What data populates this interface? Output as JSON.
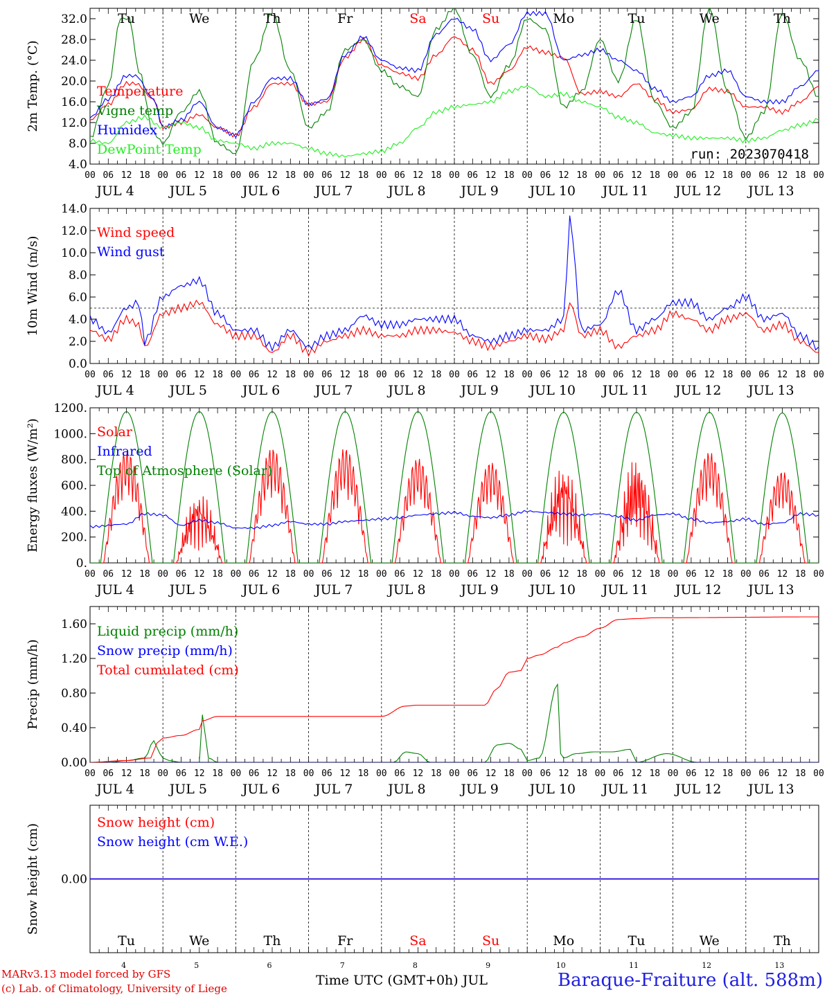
{
  "run": "run: 2023070418",
  "footer": {
    "model": "MARv3.13 model forced by GFS",
    "lab": "(c) Lab. of Climatology, University of Liege",
    "time_label": "Time UTC (GMT+0h) JUL",
    "station": "Baraque-Fraiture (alt. 588m)"
  },
  "days": [
    "Tu",
    "We",
    "Th",
    "Fr",
    "Sa",
    "Su",
    "Mo",
    "Tu",
    "We",
    "Th"
  ],
  "weekend_index": [
    4,
    5
  ],
  "date_labels": [
    "JUL  4",
    "JUL  5",
    "JUL  6",
    "JUL  7",
    "JUL  8",
    "JUL  9",
    "JUL 10",
    "JUL 11",
    "JUL 12",
    "JUL 13"
  ],
  "bottom_day_numbers": [
    "4",
    "5",
    "6",
    "7",
    "8",
    "9",
    "10",
    "11",
    "12",
    "13"
  ],
  "hour_labels": [
    "00",
    "06",
    "12",
    "18"
  ],
  "hour_last": "00",
  "colors": {
    "red": "#ff0000",
    "blue": "#0000ff",
    "green": "#008000",
    "lightgreen": "#22ee22",
    "purple": "#8000a0"
  },
  "chart_data": [
    {
      "type": "line",
      "panel": "temperature",
      "ylabel": "2m Temp. (°C)",
      "ylim": [
        4,
        34
      ],
      "yticks": [
        "4.0",
        "8.0",
        "12.0",
        "16.0",
        "20.0",
        "24.0",
        "28.0",
        "32.0"
      ],
      "ytick_values": [
        4,
        8,
        12,
        16,
        20,
        24,
        28,
        32
      ],
      "x_unit": "hours since JUL 4 00 UTC",
      "series": [
        {
          "name": "Temperature",
          "color": "red",
          "x": [
            0,
            6,
            12,
            15,
            21,
            24,
            30,
            36,
            42,
            48,
            54,
            60,
            66,
            72,
            78,
            84,
            90,
            96,
            102,
            108,
            114,
            120,
            126,
            132,
            138,
            144,
            150,
            156,
            162,
            168,
            174,
            180,
            186,
            192,
            198,
            204,
            210,
            216,
            222,
            228,
            234,
            240
          ],
          "y": [
            12.5,
            15.5,
            19.5,
            19.5,
            16.5,
            11,
            12,
            13.5,
            11,
            9.5,
            15,
            19.5,
            19.5,
            15.5,
            16,
            24.5,
            28,
            23,
            21.5,
            20.5,
            25,
            28.5,
            26,
            19.5,
            22,
            26.5,
            25.5,
            24.5,
            17.5,
            18,
            17,
            19.5,
            16.5,
            14,
            14.5,
            18.5,
            18,
            15,
            15,
            14,
            16,
            19
          ]
        },
        {
          "name": "Vigne temp",
          "color": "green",
          "x": [
            0,
            6,
            10,
            13,
            16,
            21,
            24,
            30,
            36,
            42,
            48,
            54,
            60,
            66,
            72,
            78,
            84,
            90,
            96,
            102,
            108,
            114,
            120,
            126,
            132,
            138,
            144,
            150,
            156,
            162,
            168,
            174,
            180,
            186,
            192,
            198,
            204,
            210,
            216,
            222,
            228,
            234,
            240
          ],
          "y": [
            9,
            19,
            32,
            32,
            22,
            10,
            8,
            14,
            18,
            8,
            6,
            24,
            33,
            22,
            11,
            14,
            26,
            28,
            22,
            19,
            17,
            30,
            34,
            25,
            17,
            23,
            32,
            30,
            15,
            18,
            28,
            20,
            32,
            16,
            11,
            14,
            34,
            18,
            9,
            14,
            33,
            24,
            17
          ]
        },
        {
          "name": "Humidex",
          "color": "blue",
          "x": [
            0,
            6,
            12,
            15,
            21,
            24,
            30,
            36,
            42,
            48,
            54,
            60,
            66,
            72,
            78,
            84,
            90,
            96,
            102,
            108,
            114,
            120,
            126,
            132,
            138,
            144,
            150,
            156,
            162,
            168,
            174,
            180,
            186,
            192,
            198,
            204,
            210,
            216,
            222,
            228,
            234,
            240
          ],
          "y": [
            13,
            16.5,
            21,
            21,
            16.5,
            11,
            12.5,
            16,
            11,
            9.5,
            16,
            20.5,
            20.5,
            15.5,
            16.5,
            25,
            28.5,
            24,
            22.5,
            22,
            29,
            32,
            30,
            24,
            27,
            33,
            33,
            24,
            25,
            26,
            24,
            22,
            18.5,
            16,
            17,
            21,
            22,
            17,
            16,
            16,
            19,
            22
          ]
        },
        {
          "name": "DewPoint Temp",
          "color": "lightgreen",
          "x": [
            0,
            6,
            12,
            18,
            24,
            30,
            36,
            42,
            48,
            54,
            60,
            66,
            72,
            78,
            84,
            90,
            96,
            102,
            108,
            114,
            120,
            126,
            132,
            138,
            144,
            150,
            156,
            162,
            168,
            174,
            180,
            186,
            192,
            198,
            204,
            210,
            216,
            222,
            228,
            234,
            240
          ],
          "y": [
            8.5,
            8,
            12,
            13,
            11,
            12,
            11,
            8.5,
            8,
            7,
            8,
            8,
            7,
            6,
            5.5,
            6,
            6.5,
            8,
            11,
            14,
            15,
            15.5,
            16,
            18,
            19,
            17,
            17.5,
            16,
            15,
            13,
            12,
            10,
            9.5,
            9,
            9,
            9,
            8.5,
            9,
            10.5,
            11.5,
            12.5
          ]
        }
      ]
    },
    {
      "type": "line",
      "panel": "wind",
      "ylabel": "10m Wind (m/s)",
      "ylim": [
        0,
        14
      ],
      "yticks": [
        "0.0",
        "2.0",
        "4.0",
        "6.0",
        "8.0",
        "10.0",
        "12.0",
        "14.0"
      ],
      "ytick_values": [
        0,
        2,
        4,
        6,
        8,
        10,
        12,
        14
      ],
      "reference_line": 5,
      "series": [
        {
          "name": "Wind speed",
          "color": "red",
          "x": [
            0,
            6,
            12,
            16,
            18,
            24,
            30,
            36,
            42,
            48,
            54,
            60,
            66,
            72,
            78,
            84,
            90,
            96,
            102,
            108,
            114,
            120,
            126,
            132,
            138,
            144,
            150,
            156,
            158,
            162,
            168,
            174,
            180,
            186,
            192,
            198,
            204,
            210,
            216,
            222,
            228,
            234,
            240
          ],
          "y": [
            3,
            2.2,
            4,
            3.5,
            1.5,
            4.5,
            5,
            5.5,
            3.5,
            2.5,
            2.5,
            1,
            2.5,
            1,
            2,
            2.5,
            3,
            2.5,
            2.5,
            3,
            3,
            2.8,
            2,
            1.5,
            2,
            2.5,
            2.2,
            3,
            5.5,
            2.5,
            3,
            1.5,
            2.5,
            3,
            4.5,
            4,
            3,
            4,
            4.5,
            3,
            3.5,
            2,
            1
          ]
        },
        {
          "name": "Wind gust",
          "color": "blue",
          "x": [
            0,
            6,
            12,
            16,
            18,
            24,
            30,
            36,
            42,
            48,
            54,
            60,
            66,
            72,
            78,
            84,
            90,
            96,
            102,
            108,
            114,
            120,
            126,
            132,
            138,
            144,
            150,
            156,
            158,
            162,
            168,
            174,
            180,
            186,
            192,
            198,
            204,
            210,
            216,
            222,
            228,
            234,
            240
          ],
          "y": [
            4,
            2.8,
            5,
            5.5,
            2,
            6,
            7,
            7.5,
            4.5,
            3,
            3,
            1.5,
            3,
            1.5,
            2.5,
            3,
            4.3,
            3.5,
            3.5,
            4,
            4,
            4,
            2.5,
            2,
            2.5,
            3,
            3,
            4,
            13,
            3,
            3.5,
            6.5,
            3,
            4,
            5.5,
            5.5,
            4,
            5,
            6,
            4,
            4.5,
            2.5,
            1.5
          ]
        }
      ]
    },
    {
      "type": "line",
      "panel": "energy",
      "ylabel": "Energy fluxes (W/m²)",
      "ylim": [
        0,
        1200
      ],
      "yticks": [
        "0.",
        "200.",
        "400.",
        "600.",
        "800.",
        "1000.",
        "1200."
      ],
      "ytick_values": [
        0,
        200,
        400,
        600,
        800,
        1000,
        1200
      ],
      "series": [
        {
          "name": "Solar",
          "color": "red",
          "daily_peak": [
            870,
            580,
            890,
            890,
            810,
            780,
            820,
            860,
            860,
            710
          ]
        },
        {
          "name": "Infrared",
          "color": "blue",
          "x": [
            0,
            12,
            18,
            24,
            30,
            36,
            42,
            48,
            54,
            60,
            66,
            72,
            78,
            84,
            90,
            96,
            102,
            108,
            114,
            120,
            126,
            132,
            138,
            144,
            150,
            156,
            162,
            168,
            174,
            180,
            186,
            192,
            198,
            204,
            210,
            216,
            222,
            228,
            234,
            240
          ],
          "y": [
            280,
            300,
            380,
            370,
            290,
            330,
            310,
            270,
            270,
            290,
            320,
            300,
            300,
            320,
            330,
            340,
            350,
            370,
            380,
            390,
            360,
            350,
            370,
            400,
            390,
            380,
            370,
            380,
            360,
            330,
            370,
            380,
            340,
            310,
            320,
            340,
            300,
            310,
            380,
            370
          ]
        },
        {
          "name": "Top of Atmosphere (Solar)",
          "color": "green",
          "daily_peak": [
            1170,
            1170,
            1170,
            1170,
            1170,
            1170,
            1165,
            1165,
            1165,
            1160
          ]
        }
      ]
    },
    {
      "type": "line",
      "panel": "precip",
      "ylabel": "Precip (mm/h)",
      "ylim": [
        0,
        1.8
      ],
      "yticks": [
        "0.00",
        "0.40",
        "0.80",
        "1.20",
        "1.60"
      ],
      "ytick_values": [
        0,
        0.4,
        0.8,
        1.2,
        1.6
      ],
      "series": [
        {
          "name": "Liquid precip (mm/h)",
          "color": "green",
          "x": [
            0,
            6,
            12,
            18,
            21,
            23,
            24,
            26,
            30,
            36,
            37,
            39,
            42,
            48,
            96,
            100,
            104,
            108,
            112,
            120,
            130,
            134,
            138,
            142,
            144,
            148,
            154,
            155,
            156,
            160,
            166,
            172,
            178,
            180,
            190,
            200,
            240
          ],
          "y": [
            0,
            0,
            0.02,
            0.05,
            0.25,
            0.1,
            0.05,
            0.02,
            0,
            0,
            0.55,
            0.05,
            0,
            0,
            0,
            0,
            0.12,
            0.1,
            0,
            0,
            0,
            0.2,
            0.22,
            0.15,
            0.02,
            0.05,
            0.9,
            0.1,
            0.05,
            0.1,
            0.12,
            0.12,
            0.15,
            0,
            0.1,
            0,
            0
          ]
        },
        {
          "name": "Snow precip (mm/h)",
          "color": "blue",
          "x": [
            0,
            240
          ],
          "y": [
            0,
            0
          ]
        },
        {
          "name": "Total cumulated (cm)",
          "color": "red",
          "x": [
            0,
            12,
            20,
            22,
            24,
            30,
            36,
            37,
            42,
            48,
            96,
            104,
            108,
            130,
            134,
            138,
            142,
            144,
            148,
            154,
            156,
            162,
            168,
            174,
            180,
            186,
            240
          ],
          "y": [
            0,
            0.02,
            0.05,
            0.22,
            0.28,
            0.31,
            0.38,
            0.48,
            0.53,
            0.53,
            0.53,
            0.65,
            0.66,
            0.66,
            0.85,
            1.04,
            1.06,
            1.2,
            1.24,
            1.33,
            1.38,
            1.45,
            1.55,
            1.65,
            1.66,
            1.67,
            1.68
          ]
        }
      ]
    },
    {
      "type": "line",
      "panel": "snow",
      "ylabel": "Snow height (cm)",
      "ylim": [
        -1,
        1
      ],
      "yticks": [
        "0.00"
      ],
      "ytick_values": [
        0
      ],
      "series": [
        {
          "name": "Snow height (cm)",
          "color": "red",
          "x": [
            0,
            240
          ],
          "y": [
            0,
            0
          ]
        },
        {
          "name": "Snow height (cm W.E.)",
          "color": "blue",
          "x": [
            0,
            240
          ],
          "y": [
            0,
            0
          ]
        }
      ]
    }
  ]
}
